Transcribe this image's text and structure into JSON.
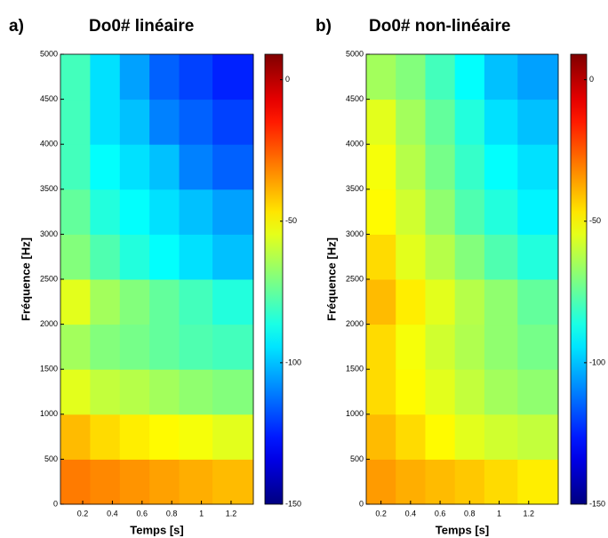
{
  "chart_data": [
    {
      "type": "heatmap",
      "panel_label": "a)",
      "title": "Do0# linéaire",
      "xlabel": "Temps [s]",
      "ylabel": "Fréquence [Hz]",
      "colormap": "jet",
      "x": [
        0.15,
        0.35,
        0.55,
        0.75,
        0.95,
        1.2
      ],
      "y": [
        250,
        750,
        1250,
        1750,
        2250,
        2750,
        3250,
        3750,
        4250,
        4750
      ],
      "z": [
        [
          -30,
          -32,
          -34,
          -36,
          -38,
          -40
        ],
        [
          -40,
          -45,
          -48,
          -50,
          -52,
          -55
        ],
        [
          -55,
          -60,
          -62,
          -65,
          -68,
          -70
        ],
        [
          -65,
          -70,
          -72,
          -75,
          -78,
          -80
        ],
        [
          -55,
          -65,
          -70,
          -75,
          -80,
          -85
        ],
        [
          -70,
          -78,
          -85,
          -90,
          -95,
          -100
        ],
        [
          -75,
          -85,
          -90,
          -95,
          -100,
          -105
        ],
        [
          -80,
          -90,
          -95,
          -100,
          -110,
          -115
        ],
        [
          -80,
          -95,
          -100,
          -110,
          -115,
          -120
        ],
        [
          -80,
          -95,
          -105,
          -115,
          -120,
          -125
        ]
      ],
      "xlim": [
        0.05,
        1.35
      ],
      "xticks": [
        0.2,
        0.4,
        0.6,
        0.8,
        1,
        1.2
      ],
      "ylim": [
        0,
        5000
      ],
      "yticks": [
        0,
        500,
        1000,
        1500,
        2000,
        2500,
        3000,
        3500,
        4000,
        4500,
        5000
      ],
      "clim": [
        -150,
        9
      ],
      "cticks": [
        0,
        -50,
        -100,
        -150
      ]
    },
    {
      "type": "heatmap",
      "panel_label": "b)",
      "title": "Do0# non-linéaire",
      "xlabel": "Temps [s]",
      "ylabel": "Fréquence [Hz]",
      "colormap": "jet",
      "x": [
        0.2,
        0.4,
        0.6,
        0.8,
        1.0,
        1.25
      ],
      "y": [
        250,
        750,
        1250,
        1750,
        2250,
        2750,
        3250,
        3750,
        4250,
        4750
      ],
      "z": [
        [
          -35,
          -38,
          -40,
          -42,
          -45,
          -48
        ],
        [
          -40,
          -45,
          -50,
          -55,
          -58,
          -60
        ],
        [
          -45,
          -50,
          -55,
          -60,
          -65,
          -68
        ],
        [
          -45,
          -52,
          -58,
          -63,
          -68,
          -72
        ],
        [
          -40,
          -48,
          -55,
          -62,
          -68,
          -75
        ],
        [
          -45,
          -55,
          -62,
          -70,
          -78,
          -85
        ],
        [
          -50,
          -58,
          -68,
          -78,
          -85,
          -92
        ],
        [
          -52,
          -62,
          -72,
          -82,
          -90,
          -95
        ],
        [
          -55,
          -65,
          -75,
          -85,
          -95,
          -100
        ],
        [
          -65,
          -70,
          -80,
          -90,
          -100,
          -105
        ]
      ],
      "xlim": [
        0.1,
        1.4
      ],
      "xticks": [
        0.2,
        0.4,
        0.6,
        0.8,
        1,
        1.2
      ],
      "ylim": [
        0,
        5000
      ],
      "yticks": [
        0,
        500,
        1000,
        1500,
        2000,
        2500,
        3000,
        3500,
        4000,
        4500,
        5000
      ],
      "clim": [
        -150,
        9
      ],
      "cticks": [
        0,
        -50,
        -100,
        -150
      ]
    }
  ]
}
